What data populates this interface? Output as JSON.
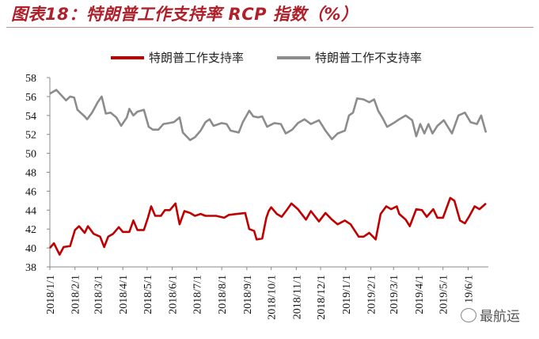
{
  "title": "图表18：特朗普工作支持率 RCP 指数（%）",
  "watermark": "最航运",
  "chart_data": {
    "type": "line",
    "title": "图表18：特朗普工作支持率 RCP 指数（%）",
    "xlabel": "",
    "ylabel": "",
    "x_unit": "days since 2018/1/1",
    "xlim": [
      0,
      538
    ],
    "ylim": [
      38,
      58
    ],
    "yticks": [
      38,
      40,
      42,
      44,
      46,
      48,
      50,
      52,
      54,
      56,
      58
    ],
    "xticks": [
      {
        "day": 0,
        "label": "2018/1/1"
      },
      {
        "day": 31,
        "label": "2018/2/1"
      },
      {
        "day": 59,
        "label": "2018/3/1"
      },
      {
        "day": 90,
        "label": "2018/4/1"
      },
      {
        "day": 120,
        "label": "2018/5/1"
      },
      {
        "day": 151,
        "label": "2018/6/1"
      },
      {
        "day": 181,
        "label": "2018/7/1"
      },
      {
        "day": 212,
        "label": "2018/8/1"
      },
      {
        "day": 243,
        "label": "2018/9/1"
      },
      {
        "day": 273,
        "label": "2018/10/1"
      },
      {
        "day": 304,
        "label": "2018/11/1"
      },
      {
        "day": 334,
        "label": "2018/12/1"
      },
      {
        "day": 365,
        "label": "2019/1/1"
      },
      {
        "day": 396,
        "label": "2019/2/1"
      },
      {
        "day": 424,
        "label": "2019/3/1"
      },
      {
        "day": 455,
        "label": "2019/4/1"
      },
      {
        "day": 485,
        "label": "2019/5/1"
      },
      {
        "day": 516,
        "label": "19/6/1"
      }
    ],
    "grid": false,
    "legend_position": "top",
    "series": [
      {
        "name": "特朗普工作支持率",
        "color": "#c00000",
        "x": [
          0,
          5,
          12,
          17,
          25,
          31,
          36,
          43,
          47,
          54,
          62,
          67,
          72,
          78,
          85,
          90,
          98,
          103,
          108,
          116,
          121,
          125,
          130,
          137,
          142,
          148,
          155,
          160,
          166,
          173,
          179,
          186,
          192,
          199,
          205,
          215,
          221,
          231,
          241,
          246,
          252,
          255,
          262,
          267,
          270,
          273,
          280,
          286,
          293,
          298,
          306,
          316,
          322,
          332,
          340,
          348,
          355,
          364,
          371,
          381,
          387,
          394,
          402,
          408,
          415,
          421,
          428,
          431,
          439,
          444,
          452,
          459,
          465,
          473,
          478,
          485,
          494,
          499,
          506,
          512,
          517,
          524,
          530,
          538
        ],
        "values": [
          40,
          40.5,
          39.3,
          40.1,
          40.2,
          41.9,
          42.3,
          41.6,
          42.3,
          41.5,
          41.2,
          40.1,
          41.2,
          41.5,
          42.2,
          41.7,
          41.7,
          42.9,
          41.9,
          41.9,
          43.2,
          44.4,
          43.4,
          43.4,
          44,
          44,
          44.7,
          42.5,
          43.9,
          43.7,
          43.4,
          43.6,
          43.4,
          43.4,
          43.4,
          43.2,
          43.5,
          43.6,
          43.7,
          42,
          41.8,
          40.9,
          41,
          43.2,
          43.9,
          44.3,
          43.6,
          43.3,
          44.1,
          44.7,
          44.1,
          43,
          43.9,
          42.8,
          43.7,
          43,
          42.5,
          42.9,
          42.5,
          41.2,
          41.2,
          41.6,
          40.9,
          43.6,
          44.4,
          44.1,
          44.4,
          43.6,
          43,
          42.3,
          44.1,
          44,
          43.3,
          44.1,
          43.2,
          43.2,
          45.3,
          45,
          42.9,
          42.6,
          43.3,
          44.4,
          44.1,
          44.7
        ]
      },
      {
        "name": "特朗普工作不支持率",
        "color": "#8c8c8c",
        "x": [
          0,
          8,
          20,
          25,
          30,
          34,
          43,
          46,
          52,
          59,
          64,
          69,
          75,
          82,
          88,
          95,
          98,
          103,
          108,
          116,
          122,
          127,
          134,
          140,
          147,
          153,
          160,
          164,
          173,
          179,
          186,
          192,
          197,
          202,
          212,
          218,
          223,
          233,
          238,
          246,
          251,
          257,
          262,
          268,
          270,
          277,
          285,
          291,
          299,
          306,
          314,
          322,
          332,
          340,
          348,
          355,
          364,
          369,
          374,
          379,
          387,
          394,
          400,
          405,
          410,
          416,
          424,
          431,
          439,
          447,
          452,
          457,
          462,
          467,
          472,
          478,
          486,
          496,
          504,
          512,
          519,
          527,
          532,
          538
        ],
        "values": [
          56.3,
          56.7,
          55.6,
          56,
          55.9,
          54.6,
          53.9,
          53.6,
          54.3,
          55.4,
          56,
          54.2,
          54.3,
          53.8,
          52.9,
          53.8,
          54.7,
          54,
          54.4,
          54.6,
          52.8,
          52.5,
          52.5,
          53.1,
          53.2,
          53.3,
          53.8,
          52.2,
          51.4,
          51.7,
          52.4,
          53.3,
          53.6,
          52.9,
          53.2,
          53.1,
          52.4,
          52.2,
          53.3,
          54.5,
          53.9,
          53.8,
          53.9,
          52.8,
          52.9,
          53.2,
          53.1,
          52.1,
          52.5,
          53.2,
          53.6,
          53.1,
          53.5,
          52.4,
          51.5,
          52.1,
          52.4,
          54,
          54.3,
          55.8,
          55.7,
          55.4,
          55.7,
          54.5,
          53.8,
          52.8,
          53.2,
          53.6,
          54,
          53.5,
          51.8,
          53.1,
          52.1,
          53.1,
          52.1,
          52.9,
          53.5,
          52.1,
          54,
          54.3,
          53.3,
          53.1,
          54,
          52.2
        ]
      }
    ]
  }
}
